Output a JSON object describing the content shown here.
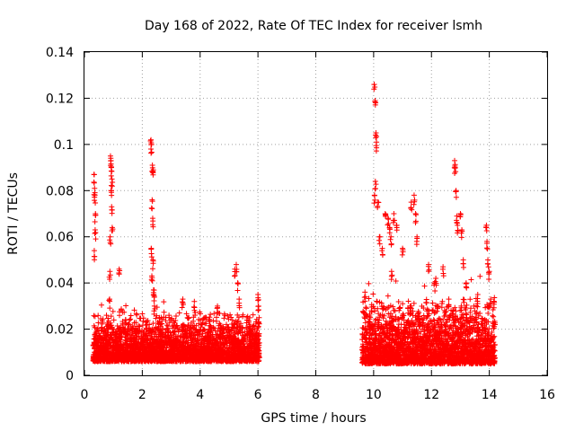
{
  "chart_data": {
    "type": "scatter",
    "title": "Day 168 of 2022, Rate Of TEC Index for receiver lsmh",
    "xlabel": "GPS time / hours",
    "ylabel": "ROTI / TECUs",
    "xlim": [
      0,
      16
    ],
    "ylim": [
      0,
      0.14
    ],
    "xticks": [
      "0",
      "2",
      "4",
      "6",
      "8",
      "10",
      "12",
      "14",
      "16"
    ],
    "yticks": [
      "0",
      "0.02",
      "0.04",
      "0.06",
      "0.08",
      "0.1",
      "0.12",
      "0.14"
    ],
    "grid": true,
    "marker": "+",
    "series": [
      {
        "name": "ROTI",
        "color": "#ff0000",
        "x": [
          0.33,
          0.35,
          0.36,
          0.38,
          0.37,
          0.34,
          0.9,
          0.91,
          0.93,
          0.95,
          0.92,
          0.94,
          0.96,
          0.89,
          0.88,
          0.87,
          1.2,
          2.3,
          2.32,
          2.35,
          2.38,
          2.34,
          2.36,
          2.31,
          2.37,
          2.33,
          2.39,
          2.4,
          2.42,
          3.4,
          3.6,
          3.8,
          4.6,
          5.2,
          5.25,
          5.3,
          5.35,
          6.0,
          6.02,
          6.04,
          9.7,
          9.75,
          10.02,
          10.05,
          10.08,
          10.1,
          10.06,
          10.03,
          10.15,
          10.2,
          10.3,
          10.4,
          10.5,
          10.55,
          10.6,
          10.62,
          10.7,
          10.8,
          11.0,
          11.3,
          11.4,
          11.45,
          11.5,
          11.9,
          12.1,
          12.15,
          12.2,
          12.4,
          12.6,
          12.8,
          12.82,
          12.85,
          12.88,
          12.9,
          13.0,
          13.05,
          13.1,
          13.2,
          13.6,
          13.9,
          13.92,
          13.95,
          14.0,
          14.05
        ],
        "y": [
          0.087,
          0.081,
          0.078,
          0.07,
          0.063,
          0.054,
          0.095,
          0.094,
          0.09,
          0.085,
          0.08,
          0.073,
          0.064,
          0.06,
          0.045,
          0.033,
          0.046,
          0.102,
          0.1,
          0.091,
          0.089,
          0.076,
          0.068,
          0.055,
          0.05,
          0.043,
          0.037,
          0.035,
          0.03,
          0.033,
          0.025,
          0.032,
          0.03,
          0.046,
          0.048,
          0.04,
          0.033,
          0.035,
          0.03,
          0.025,
          0.036,
          0.029,
          0.126,
          0.119,
          0.105,
          0.101,
          0.084,
          0.078,
          0.075,
          0.06,
          0.055,
          0.07,
          0.068,
          0.064,
          0.06,
          0.045,
          0.07,
          0.065,
          0.055,
          0.075,
          0.078,
          0.07,
          0.06,
          0.048,
          0.04,
          0.042,
          0.03,
          0.047,
          0.033,
          0.093,
          0.09,
          0.08,
          0.069,
          0.065,
          0.07,
          0.063,
          0.05,
          0.04,
          0.035,
          0.065,
          0.058,
          0.05,
          0.045,
          0.033
        ]
      }
    ],
    "segments": [
      {
        "x0": 0.3,
        "x1": 6.05,
        "base": 0.006,
        "spread": 0.022,
        "count": 3200
      },
      {
        "x0": 9.6,
        "x1": 14.2,
        "base": 0.005,
        "spread": 0.03,
        "count": 2600
      }
    ]
  }
}
